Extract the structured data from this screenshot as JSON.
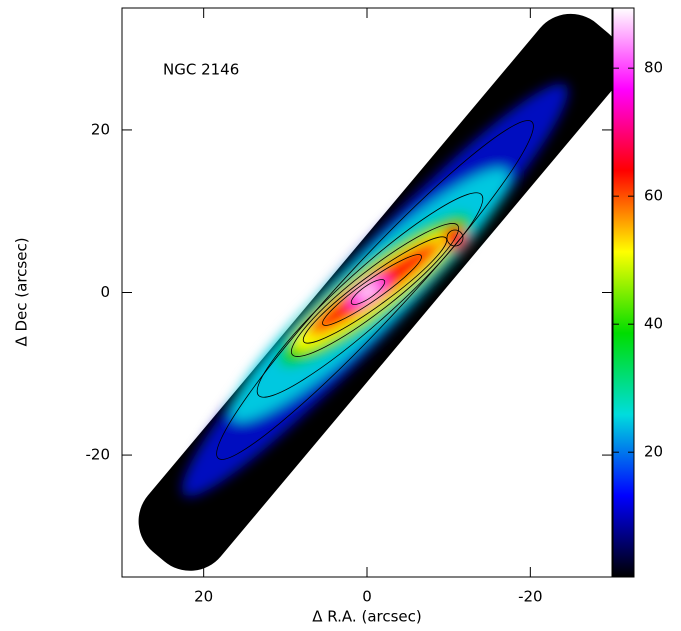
{
  "chart_data": {
    "type": "image",
    "annotation": "NGC 2146",
    "xlabel": "Δ R.A. (arcsec)",
    "ylabel": "Δ Dec (arcsec)",
    "xlim": [
      30,
      -30
    ],
    "xticks": [
      20,
      0,
      -20
    ],
    "ylim": [
      -35,
      35
    ],
    "yticks": [
      20,
      0,
      -20
    ],
    "clim": [
      0.5,
      89.4
    ],
    "cticks": [
      20,
      40,
      60,
      80
    ],
    "colormap": [
      "#000000",
      "#0000ff",
      "#00dddd",
      "#00dd00",
      "#ffff00",
      "#ff0000",
      "#ff00ff",
      "#ffffff"
    ]
  }
}
